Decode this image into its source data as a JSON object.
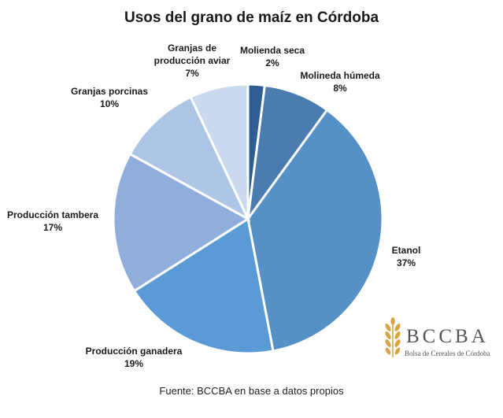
{
  "chart_data": {
    "type": "pie",
    "title": "Usos del grano de maíz en Córdoba",
    "slices": [
      {
        "name": "Molienda seca",
        "value": 2,
        "label": "2%",
        "color": "#2e5e94"
      },
      {
        "name": "Molineda húmeda",
        "value": 8,
        "label": "8%",
        "color": "#4a7cb0"
      },
      {
        "name": "Etanol",
        "value": 37,
        "label": "37%",
        "color": "#5590c6"
      },
      {
        "name": "Producción ganadera",
        "value": 19,
        "label": "19%",
        "color": "#5b9bd5"
      },
      {
        "name": "Producción tambera",
        "value": 17,
        "label": "17%",
        "color": "#8faedb"
      },
      {
        "name": "Granjas porcinas",
        "value": 10,
        "label": "10%",
        "color": "#aec6e6"
      },
      {
        "name": "Granjas de producción aviar",
        "value": 7,
        "label": "7%",
        "color": "#c9d9ee"
      }
    ],
    "source": "Fuente: BCCBA en base a datos propios"
  },
  "logo": {
    "text": "BCCBA",
    "subtitle": "Bolsa de Cereales de Córdoba",
    "color": "#d9a441"
  }
}
